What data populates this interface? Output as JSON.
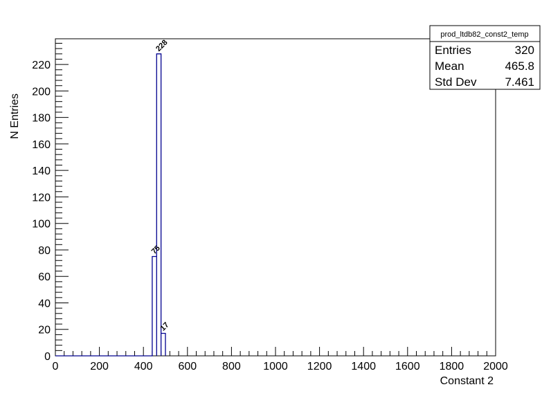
{
  "chart_data": {
    "type": "bar",
    "histogram_name": "prod_ltdb82_const2_temp",
    "xlabel": "Constant 2",
    "ylabel": "N Entries",
    "xlim": [
      0,
      2000
    ],
    "ylim": [
      0,
      239.4
    ],
    "x_ticks": [
      0,
      200,
      400,
      600,
      800,
      1000,
      1200,
      1400,
      1600,
      1800,
      2000
    ],
    "y_ticks": [
      0,
      20,
      40,
      60,
      80,
      100,
      120,
      140,
      160,
      180,
      200,
      220
    ],
    "bins": [
      {
        "low": 440,
        "high": 460,
        "value": 75
      },
      {
        "low": 460,
        "high": 480,
        "value": 228
      },
      {
        "low": 480,
        "high": 500,
        "value": 17
      }
    ],
    "line_color": "#00008f",
    "grid": false,
    "stats": {
      "title": "prod_ltdb82_const2_temp",
      "rows": [
        {
          "label": "Entries",
          "value": "320"
        },
        {
          "label": "Mean",
          "value": "465.8"
        },
        {
          "label": "Std Dev",
          "value": "7.461"
        }
      ]
    }
  }
}
